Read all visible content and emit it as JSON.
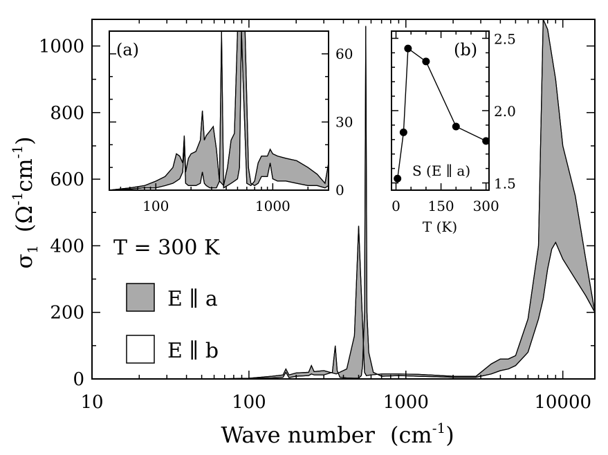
{
  "colors": {
    "band": "#aaaaaa",
    "line": "#000000",
    "background": "#ffffff"
  },
  "chart_data": [
    {
      "id": "main",
      "type": "area",
      "xscale": "log",
      "xlim": [
        10,
        16000
      ],
      "ylim": [
        0,
        1080
      ],
      "xlabel": "Wave number",
      "xlabel_unit": "(cm",
      "xlabel_unit_exp": "-1",
      "xlabel_close": ")",
      "ylabel": "σ",
      "ylabel_sub": "1",
      "ylabel_unit_1": "(Ω",
      "ylabel_unit_exp1": "-1",
      "ylabel_unit_2": "cm",
      "ylabel_unit_exp2": "-1",
      "ylabel_close": ")",
      "xticks": [
        10,
        100,
        1000,
        10000
      ],
      "xtick_labels": [
        "10",
        "100",
        "1000",
        "10000"
      ],
      "yticks": [
        0,
        200,
        400,
        600,
        800,
        1000
      ],
      "ytick_labels": [
        "0",
        "200",
        "400",
        "600",
        "800",
        "1000"
      ],
      "annotation": "T = 300 K",
      "legend": [
        {
          "label": "E ∥ a",
          "style": "filled"
        },
        {
          "label": "E ∥ b",
          "style": "open"
        }
      ],
      "series": [
        {
          "name": "E ∥ a",
          "x": [
            60,
            100,
            140,
            165,
            172,
            180,
            200,
            240,
            250,
            260,
            300,
            360,
            420,
            470,
            500,
            520,
            545,
            560,
            600,
            700,
            900,
            1200,
            2000,
            2800,
            3500,
            4000,
            4500,
            5000,
            6000,
            7000,
            7500,
            8000,
            9000,
            10000,
            12000,
            14000,
            16000
          ],
          "values": [
            0,
            2,
            8,
            12,
            30,
            12,
            18,
            20,
            40,
            22,
            25,
            15,
            30,
            130,
            460,
            260,
            20,
            10,
            12,
            15,
            15,
            14,
            8,
            8,
            45,
            60,
            60,
            70,
            180,
            400,
            1080,
            1050,
            900,
            700,
            550,
            360,
            200
          ]
        },
        {
          "name": "E ∥ b",
          "x": [
            60,
            100,
            140,
            165,
            172,
            180,
            200,
            240,
            250,
            260,
            300,
            340,
            355,
            365,
            380,
            420,
            470,
            500,
            520,
            530,
            545,
            555,
            565,
            580,
            620,
            700,
            900,
            1200,
            2000,
            2800,
            3500,
            4000,
            4500,
            5000,
            6000,
            7000,
            7500,
            8000,
            8500,
            9000,
            10000,
            12000,
            14000,
            16000
          ],
          "values": [
            0,
            1,
            3,
            5,
            20,
            4,
            8,
            10,
            15,
            12,
            12,
            20,
            100,
            25,
            5,
            3,
            2,
            2,
            10,
            40,
            200,
            1060,
            200,
            80,
            20,
            8,
            10,
            8,
            5,
            5,
            15,
            25,
            30,
            40,
            80,
            180,
            240,
            330,
            390,
            410,
            360,
            300,
            250,
            200
          ]
        }
      ]
    },
    {
      "id": "inset_a",
      "type": "area",
      "panel_label": "(a)",
      "xscale": "log",
      "xlim": [
        40,
        3000
      ],
      "ylim": [
        0,
        70
      ],
      "xticks": [
        100,
        1000
      ],
      "xtick_labels": [
        "100",
        "1000"
      ],
      "yticks": [
        0,
        30,
        60
      ],
      "ytick_labels": [
        "0",
        "30",
        "60"
      ],
      "yaxis_side": "right",
      "series": [
        {
          "name": "E ∥ a",
          "x": [
            40,
            60,
            80,
            100,
            120,
            140,
            150,
            160,
            170,
            175,
            180,
            190,
            200,
            220,
            240,
            250,
            260,
            270,
            290,
            310,
            330,
            350,
            380,
            410,
            440,
            470,
            500,
            520,
            540,
            560,
            600,
            650,
            700,
            750,
            800,
            900,
            950,
            1000,
            1100,
            1300,
            1600,
            2000,
            2400,
            2800,
            3000
          ],
          "values": [
            0,
            1,
            2,
            4,
            6,
            10,
            16,
            15,
            12,
            24,
            8,
            14,
            16,
            17,
            22,
            35,
            22,
            24,
            26,
            28,
            18,
            4,
            2,
            10,
            22,
            25,
            70,
            70,
            70,
            45,
            3,
            2,
            4,
            12,
            15,
            15,
            18,
            16,
            15,
            14,
            13,
            10,
            7,
            3,
            12
          ]
        },
        {
          "name": "E ∥ b",
          "x": [
            40,
            60,
            80,
            100,
            120,
            140,
            150,
            160,
            170,
            175,
            180,
            190,
            200,
            220,
            240,
            250,
            260,
            270,
            290,
            310,
            330,
            350,
            365,
            380,
            410,
            440,
            470,
            500,
            520,
            540,
            560,
            580,
            600,
            620,
            650,
            700,
            750,
            800,
            900,
            950,
            1000,
            1100,
            1300,
            1600,
            2000,
            2400,
            2800,
            3000
          ],
          "values": [
            0,
            0.5,
            1,
            1,
            2,
            3,
            4,
            5,
            8,
            20,
            3,
            2,
            2,
            2,
            3,
            8,
            3,
            2,
            1,
            1,
            1,
            4,
            70,
            1,
            2,
            3,
            4,
            5,
            10,
            70,
            70,
            70,
            40,
            10,
            3,
            2,
            3,
            6,
            6,
            12,
            5,
            4,
            4,
            3,
            2,
            2,
            1,
            2
          ]
        }
      ]
    },
    {
      "id": "inset_b",
      "type": "line",
      "panel_label": "(b)",
      "annotation": "S (E ∥ a)",
      "xlabel": "T (K)",
      "xlim": [
        -15,
        310
      ],
      "ylim": [
        1.45,
        2.55
      ],
      "xticks": [
        0,
        150,
        300
      ],
      "xtick_labels": [
        "0",
        "150",
        "300"
      ],
      "yticks": [
        1.5,
        2.0,
        2.5
      ],
      "ytick_labels": [
        "1.5",
        "2.0",
        "2.5"
      ],
      "yaxis_side": "right",
      "series": [
        {
          "name": "S (E ∥ a)",
          "x": [
            5,
            25,
            40,
            100,
            200,
            300
          ],
          "values": [
            1.53,
            1.85,
            2.43,
            2.34,
            1.89,
            1.79
          ]
        }
      ]
    }
  ]
}
